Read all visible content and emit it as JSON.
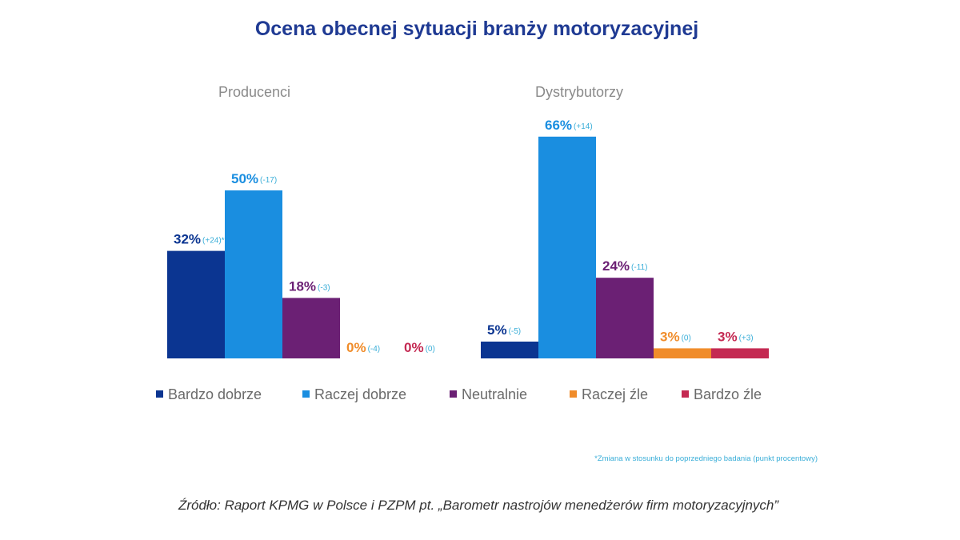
{
  "chart_data": {
    "type": "bar",
    "title": "Ocena obecnej sytuacji branży motoryzacyjnej",
    "categories": [
      "Producenci",
      "Dystrybutorzy"
    ],
    "unit": "%",
    "series": [
      {
        "name": "Bardzo dobrze",
        "color": "#0b3591",
        "values": [
          32,
          5
        ],
        "changes": [
          "(+24)*",
          "(-5)"
        ]
      },
      {
        "name": "Raczej dobrze",
        "color": "#1a8ee0",
        "values": [
          50,
          66
        ],
        "changes": [
          "(-17)",
          "(+14)"
        ]
      },
      {
        "name": "Neutralnie",
        "color": "#6b2074",
        "values": [
          18,
          24
        ],
        "changes": [
          "(-3)",
          "(-11)"
        ]
      },
      {
        "name": "Raczej źle",
        "color": "#f08c2a",
        "values": [
          0,
          3
        ],
        "changes": [
          "(-4)",
          "(0)"
        ]
      },
      {
        "name": "Bardzo źle",
        "color": "#c42952",
        "values": [
          0,
          3
        ],
        "changes": [
          "(0)",
          "(+3)"
        ]
      }
    ],
    "ylim": [
      0,
      70
    ],
    "grid": false,
    "legend": "bottom",
    "footnote": "*Zmiana w stosunku do poprzedniego badania (punkt procentowy)",
    "source": "Źródło: Raport KPMG w Polsce i PZPM pt. „Barometr nastrojów menedżerów firm motoryzacyjnych”"
  },
  "colors": {
    "title": "#1f3a93",
    "change_label": "#3aaed8"
  }
}
